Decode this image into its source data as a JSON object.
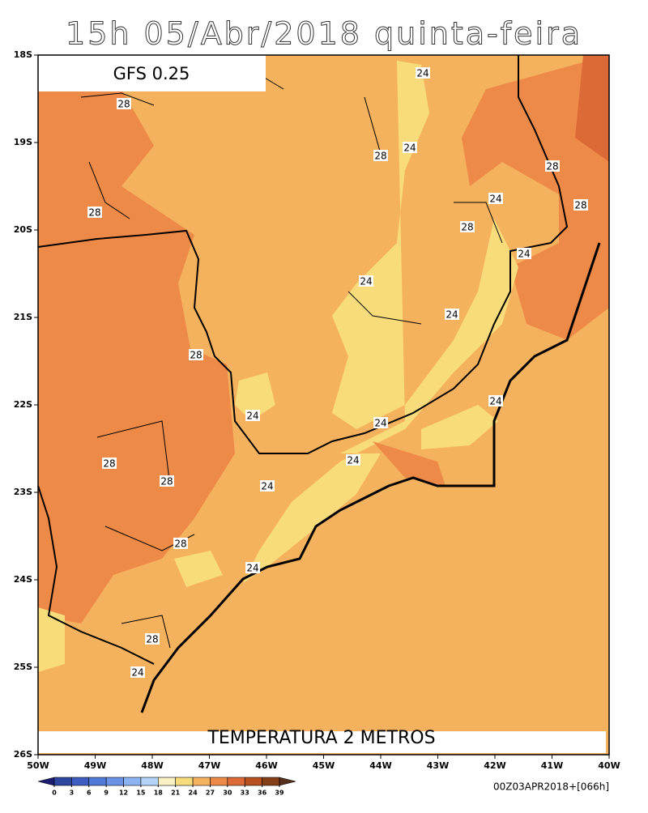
{
  "title": "15h 05/Abr/2018 quinta-feira",
  "model_label": "GFS 0.25",
  "field_label": "TEMPERATURA 2 METROS",
  "run_label": "00Z03APR2018+[066h]",
  "lat_labels": [
    "18S",
    "19S",
    "20S",
    "21S",
    "22S",
    "23S",
    "24S",
    "25S",
    "26S"
  ],
  "lon_labels": [
    "50W",
    "49W",
    "48W",
    "47W",
    "46W",
    "45W",
    "44W",
    "43W",
    "42W",
    "41W",
    "40W"
  ],
  "contour_labels": [
    24,
    28,
    28,
    24,
    28,
    28,
    24,
    28,
    28,
    24,
    24,
    24,
    28,
    24,
    24,
    24,
    24,
    28,
    28,
    24,
    28,
    24,
    28,
    24
  ],
  "colorbar": {
    "ticks": [
      0,
      3,
      6,
      9,
      12,
      15,
      18,
      21,
      24,
      27,
      30,
      33,
      36,
      39
    ],
    "colors": [
      "#1c1c70",
      "#2e46a0",
      "#3d5ec0",
      "#5079d8",
      "#6a93e8",
      "#8cb3f2",
      "#b4d3f8",
      "#f9f1c4",
      "#f8dc7c",
      "#f5b25e",
      "#ee8a48",
      "#dc6a36",
      "#b84f20",
      "#864018",
      "#55301a"
    ]
  }
}
